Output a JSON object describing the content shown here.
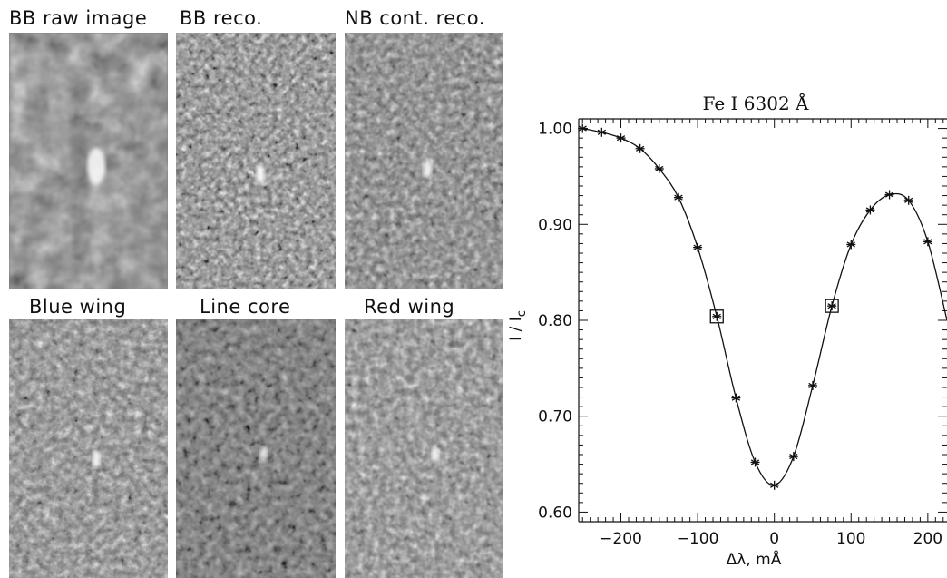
{
  "panels": [
    {
      "title": "BB raw image",
      "style": "raw"
    },
    {
      "title": "BB reco.",
      "style": "reco"
    },
    {
      "title": "NB cont. reco.",
      "style": "nbcont"
    },
    {
      "title": "Blue wing",
      "style": "blue"
    },
    {
      "title": "Line core",
      "style": "core"
    },
    {
      "title": "Red wing",
      "style": "red"
    }
  ],
  "chart_data": {
    "type": "line",
    "title": "Fe I 6302 Å",
    "xlabel": "Δλ, mÅ",
    "ylabel": "I / I",
    "ylabel_sub": "c",
    "xlim": [
      -255,
      225
    ],
    "ylim": [
      0.59,
      1.01
    ],
    "xticks": [
      -200,
      -100,
      0,
      100,
      200
    ],
    "xtick_labels": [
      "−200",
      "−100",
      "0",
      "100",
      "200"
    ],
    "yticks": [
      0.6,
      0.7,
      0.8,
      0.9,
      1.0
    ],
    "ytick_labels": [
      "0.60",
      "0.70",
      "0.80",
      "0.90",
      "1.00"
    ],
    "series": [
      {
        "points": [
          [
            -250,
            1.0
          ],
          [
            -225,
            0.996
          ],
          [
            -200,
            0.99
          ],
          [
            -175,
            0.979
          ],
          [
            -150,
            0.958
          ],
          [
            -125,
            0.928
          ],
          [
            -100,
            0.876
          ],
          [
            -75,
            0.804
          ],
          [
            -50,
            0.719
          ],
          [
            -25,
            0.652
          ],
          [
            0,
            0.628
          ],
          [
            25,
            0.658
          ],
          [
            50,
            0.732
          ],
          [
            75,
            0.815
          ],
          [
            100,
            0.879
          ],
          [
            125,
            0.915
          ],
          [
            150,
            0.931
          ],
          [
            175,
            0.925
          ],
          [
            200,
            0.882
          ]
        ],
        "marker": "asterisk"
      }
    ],
    "highlighted": [
      [
        -75,
        0.804
      ],
      [
        75,
        0.815
      ]
    ],
    "curve_end": [
      225,
      0.8
    ]
  }
}
